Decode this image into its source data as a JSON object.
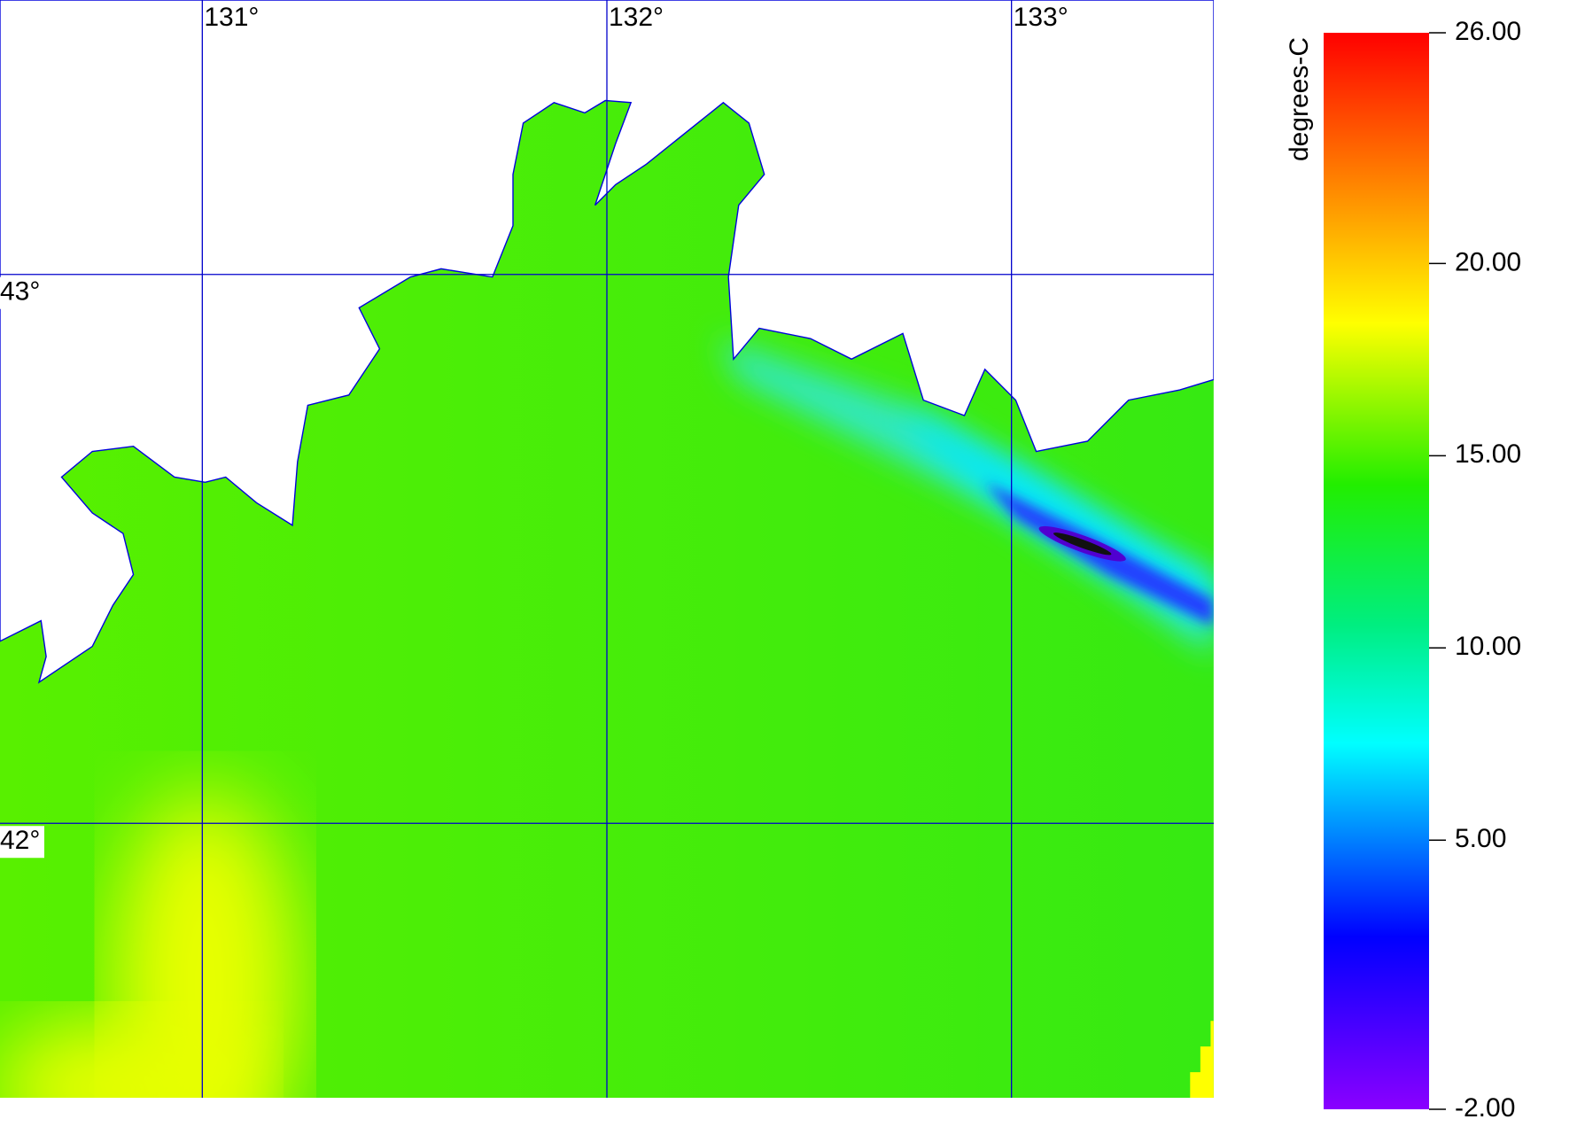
{
  "map": {
    "xlim": [
      130.5,
      133.5
    ],
    "ylim": [
      41.5,
      43.5
    ],
    "grid_color": "#0000cc",
    "lon_ticks": [
      {
        "value": 131,
        "label": "131°"
      },
      {
        "value": 132,
        "label": "132°"
      },
      {
        "value": 133,
        "label": "133°"
      }
    ],
    "lat_ticks": [
      {
        "value": 43,
        "label": "43°"
      },
      {
        "value": 42,
        "label": "42°"
      }
    ]
  },
  "colorbar": {
    "label": "degrees-C",
    "range": [
      -2,
      26
    ],
    "ticks": [
      {
        "value": 26,
        "label": "26.00"
      },
      {
        "value": 20,
        "label": "20.00"
      },
      {
        "value": 15,
        "label": "15.00"
      },
      {
        "value": 10,
        "label": "10.00"
      },
      {
        "value": 5,
        "label": "5.00"
      },
      {
        "value": -2,
        "label": "-2.00"
      }
    ]
  }
}
